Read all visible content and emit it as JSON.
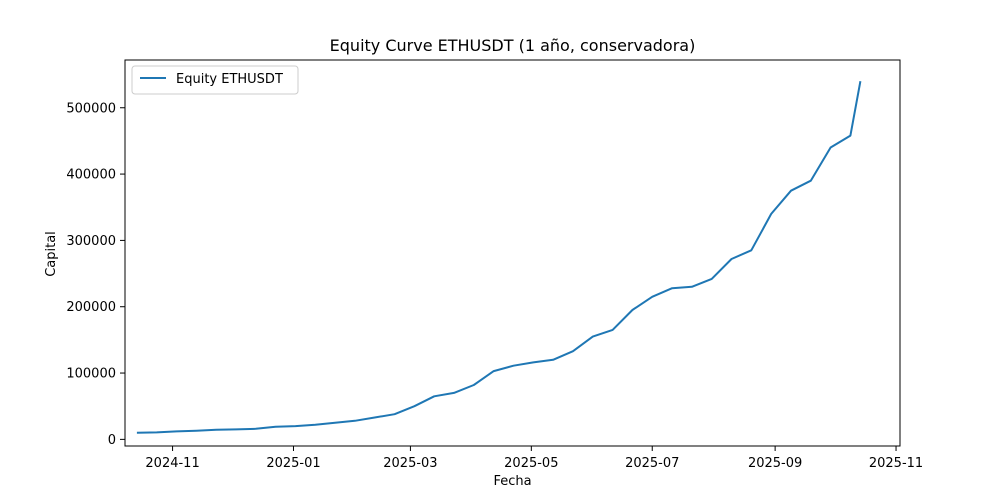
{
  "chart_data": {
    "type": "line",
    "title": "Equity Curve ETHUSDT (1 año, conservadora)",
    "xlabel": "Fecha",
    "ylabel": "Capital",
    "xlim": [
      "2024-10-08",
      "2025-11-03"
    ],
    "ylim": [
      -10000,
      572000
    ],
    "x_ticks": [
      "2024-11",
      "2025-01",
      "2025-03",
      "2025-05",
      "2025-07",
      "2025-09",
      "2025-11"
    ],
    "y_ticks": [
      0,
      100000,
      200000,
      300000,
      400000,
      500000
    ],
    "grid": false,
    "legend_position": "upper left",
    "line_color": "#1f77b4",
    "series": [
      {
        "name": "Equity ETHUSDT",
        "x": [
          "2024-10-14",
          "2024-10-24",
          "2024-11-03",
          "2024-11-13",
          "2024-11-23",
          "2024-12-03",
          "2024-12-13",
          "2024-12-23",
          "2025-01-02",
          "2025-01-12",
          "2025-01-22",
          "2025-02-01",
          "2025-02-11",
          "2025-02-21",
          "2025-03-03",
          "2025-03-13",
          "2025-03-23",
          "2025-04-02",
          "2025-04-12",
          "2025-04-22",
          "2025-05-02",
          "2025-05-12",
          "2025-05-22",
          "2025-06-01",
          "2025-06-11",
          "2025-06-21",
          "2025-07-01",
          "2025-07-11",
          "2025-07-21",
          "2025-07-31",
          "2025-08-10",
          "2025-08-20",
          "2025-08-30",
          "2025-09-09",
          "2025-09-19",
          "2025-09-29",
          "2025-10-09",
          "2025-10-14"
        ],
        "values": [
          10000,
          10500,
          12000,
          13000,
          14500,
          15000,
          16000,
          19000,
          20000,
          22000,
          25000,
          28000,
          33000,
          38000,
          50000,
          65000,
          70000,
          82000,
          103000,
          111000,
          116000,
          120000,
          133000,
          155000,
          165000,
          195000,
          215000,
          228000,
          230000,
          242000,
          272000,
          285000,
          340000,
          375000,
          390000,
          440000,
          458000,
          540000
        ]
      }
    ]
  }
}
